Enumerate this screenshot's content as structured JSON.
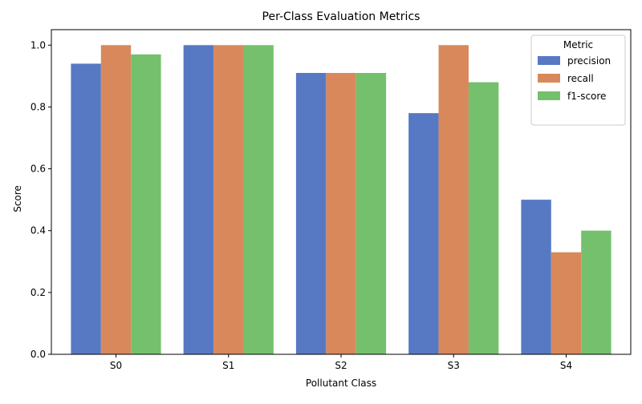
{
  "chart_data": {
    "type": "bar",
    "title": "Per-Class Evaluation Metrics",
    "xlabel": "Pollutant Class",
    "ylabel": "Score",
    "categories": [
      "S0",
      "S1",
      "S2",
      "S3",
      "S4"
    ],
    "series": [
      {
        "name": "precision",
        "color": "#5779c4",
        "values": [
          0.94,
          1.0,
          0.91,
          0.78,
          0.5
        ]
      },
      {
        "name": "recall",
        "color": "#d8885b",
        "values": [
          1.0,
          1.0,
          0.91,
          1.0,
          0.33
        ]
      },
      {
        "name": "f1-score",
        "color": "#74c06c",
        "values": [
          0.97,
          1.0,
          0.91,
          0.88,
          0.4
        ]
      }
    ],
    "ylim": [
      0,
      1.05
    ],
    "yticks": [
      0.0,
      0.2,
      0.4,
      0.6,
      0.8,
      1.0
    ],
    "ytick_labels": [
      "0.0",
      "0.2",
      "0.4",
      "0.6",
      "0.8",
      "1.0"
    ],
    "grid": false,
    "legend": {
      "title": "Metric",
      "placement": "top-right"
    }
  }
}
